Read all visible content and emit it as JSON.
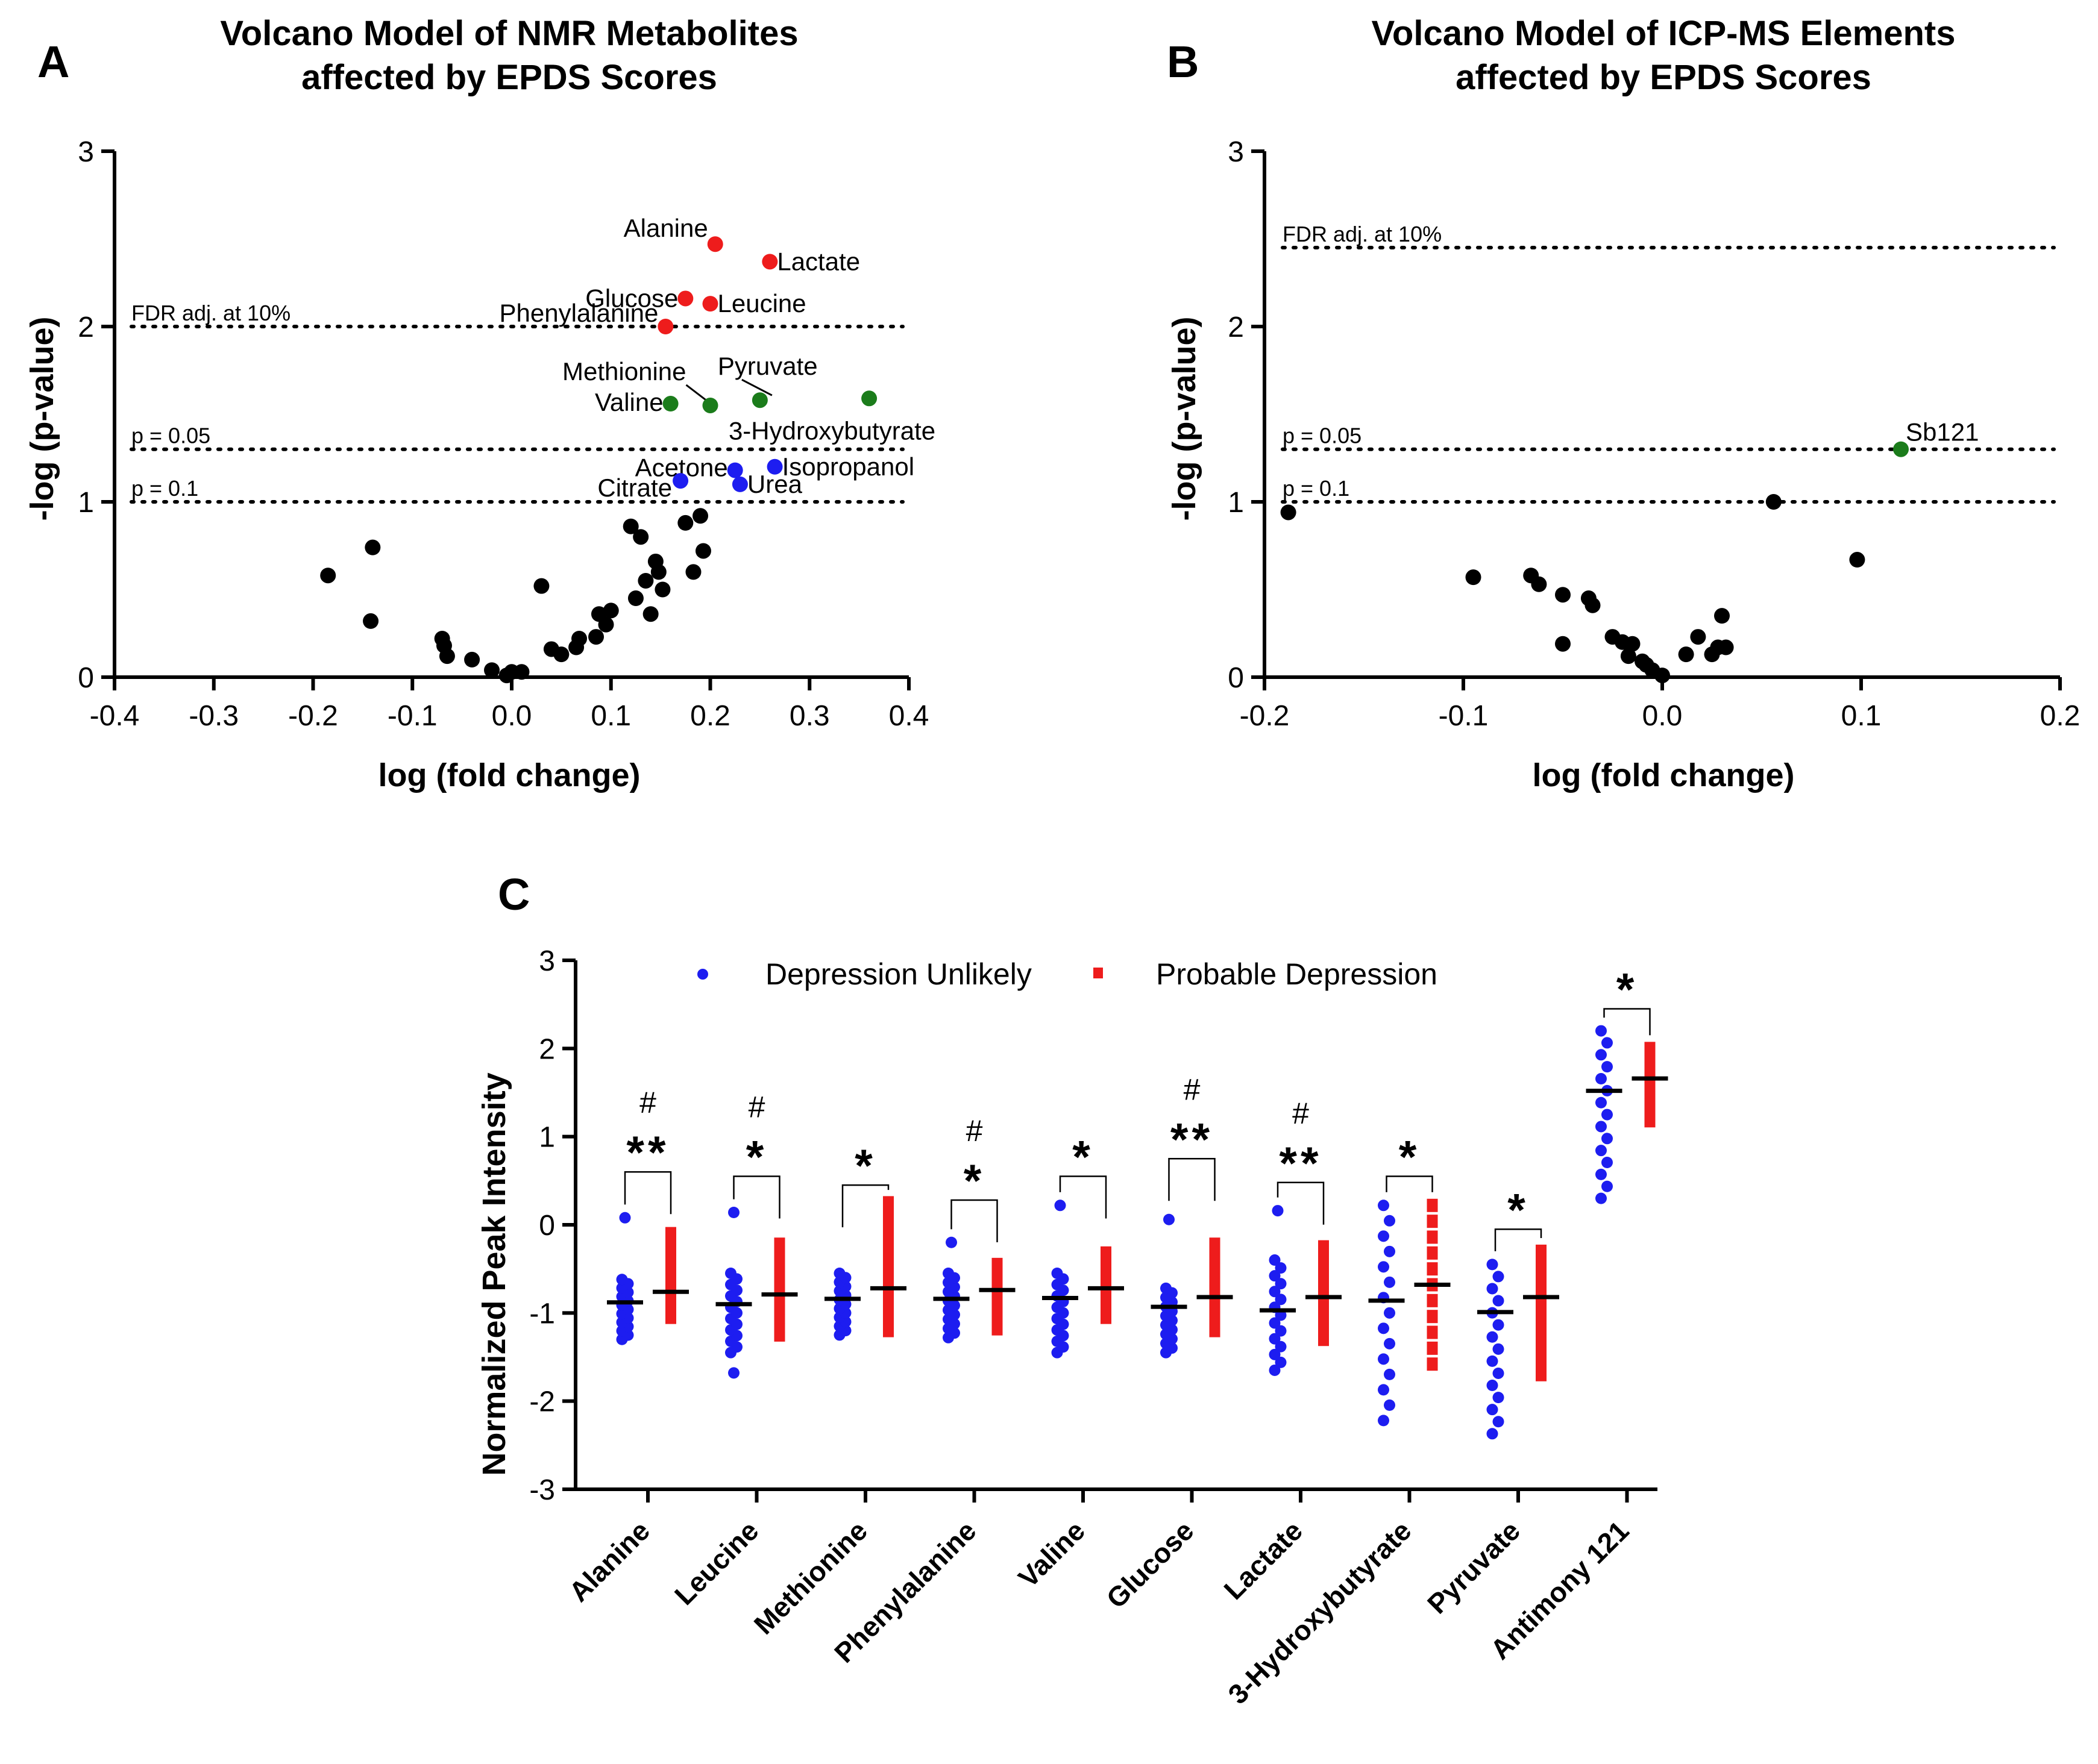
{
  "colors": {
    "red": "#ee1c1c",
    "green": "#1b7c1b",
    "blue": "#1d1df0",
    "black": "#000000"
  },
  "chart_data": [
    {
      "panel": "A",
      "type": "scatter",
      "title_lines": [
        "Volcano Model of NMR Metabolites",
        "affected by EPDS Scores"
      ],
      "xlabel": "log (fold change)",
      "ylabel": "-log (p-value)",
      "xlim": [
        -0.4,
        0.4
      ],
      "ylim": [
        0,
        3
      ],
      "xticks": [
        -0.4,
        -0.3,
        -0.2,
        -0.1,
        0.0,
        0.1,
        0.2,
        0.3,
        0.4
      ],
      "xtick_labels": [
        "-0.4",
        "-0.3",
        "-0.2",
        "-0.1",
        "0.0",
        "0.1",
        "0.2",
        "0.3",
        "0.4"
      ],
      "yticks": [
        0,
        1,
        2,
        3
      ],
      "ytick_labels": [
        "0",
        "1",
        "2",
        "3"
      ],
      "thresholds": [
        {
          "y": 2.0,
          "label": "FDR adj. at 10%"
        },
        {
          "y": 1.3,
          "label": "p = 0.05"
        },
        {
          "y": 1.0,
          "label": "p = 0.1"
        }
      ],
      "labeled_points": [
        {
          "label": "Alanine",
          "x": 0.205,
          "y": 2.47,
          "color": "red"
        },
        {
          "label": "Lactate",
          "x": 0.26,
          "y": 2.37,
          "color": "red"
        },
        {
          "label": "Glucose",
          "x": 0.175,
          "y": 2.16,
          "color": "red"
        },
        {
          "label": "Leucine",
          "x": 0.2,
          "y": 2.13,
          "color": "red"
        },
        {
          "label": "Phenylalanine",
          "x": 0.155,
          "y": 2.0,
          "color": "red"
        },
        {
          "label": "Methionine",
          "x": 0.2,
          "y": 1.55,
          "color": "green"
        },
        {
          "label": "Pyruvate",
          "x": 0.25,
          "y": 1.58,
          "color": "green"
        },
        {
          "label": "Valine",
          "x": 0.16,
          "y": 1.56,
          "color": "green"
        },
        {
          "label": "3-Hydroxybutyrate",
          "x": 0.36,
          "y": 1.59,
          "color": "green"
        },
        {
          "label": "Acetone",
          "x": 0.225,
          "y": 1.18,
          "color": "blue"
        },
        {
          "label": "Isopropanol",
          "x": 0.265,
          "y": 1.2,
          "color": "blue"
        },
        {
          "label": "Urea",
          "x": 0.23,
          "y": 1.1,
          "color": "blue"
        },
        {
          "label": "Citrate",
          "x": 0.17,
          "y": 1.12,
          "color": "blue"
        }
      ],
      "other_points": [
        [
          -0.185,
          0.58
        ],
        [
          -0.14,
          0.74
        ],
        [
          -0.142,
          0.32
        ],
        [
          -0.07,
          0.22
        ],
        [
          -0.068,
          0.18
        ],
        [
          -0.065,
          0.12
        ],
        [
          -0.04,
          0.1
        ],
        [
          -0.02,
          0.04
        ],
        [
          -0.005,
          0.01
        ],
        [
          0.0,
          0.03
        ],
        [
          0.01,
          0.03
        ],
        [
          0.03,
          0.52
        ],
        [
          0.04,
          0.16
        ],
        [
          0.05,
          0.13
        ],
        [
          0.065,
          0.17
        ],
        [
          0.068,
          0.22
        ],
        [
          0.085,
          0.23
        ],
        [
          0.088,
          0.36
        ],
        [
          0.095,
          0.3
        ],
        [
          0.1,
          0.38
        ],
        [
          0.12,
          0.86
        ],
        [
          0.13,
          0.8
        ],
        [
          0.125,
          0.45
        ],
        [
          0.135,
          0.55
        ],
        [
          0.14,
          0.36
        ],
        [
          0.145,
          0.66
        ],
        [
          0.148,
          0.6
        ],
        [
          0.152,
          0.5
        ],
        [
          0.175,
          0.88
        ],
        [
          0.183,
          0.6
        ],
        [
          0.19,
          0.92
        ],
        [
          0.193,
          0.72
        ]
      ]
    },
    {
      "panel": "B",
      "type": "scatter",
      "title_lines": [
        "Volcano Model of ICP-MS Elements",
        "affected by EPDS Scores"
      ],
      "xlabel": "log (fold change)",
      "ylabel": "-log (p-value)",
      "xlim": [
        -0.2,
        0.2
      ],
      "ylim": [
        0,
        3
      ],
      "xticks": [
        -0.2,
        -0.1,
        0.0,
        0.1,
        0.2
      ],
      "xtick_labels": [
        "-0.2",
        "-0.1",
        "0.0",
        "0.1",
        "0.2"
      ],
      "yticks": [
        0,
        1,
        2,
        3
      ],
      "ytick_labels": [
        "0",
        "1",
        "2",
        "3"
      ],
      "thresholds": [
        {
          "y": 2.45,
          "label": "FDR adj. at 10%"
        },
        {
          "y": 1.3,
          "label": "p = 0.05"
        },
        {
          "y": 1.0,
          "label": "p = 0.1"
        }
      ],
      "labeled_points": [
        {
          "label": "Sb121",
          "x": 0.12,
          "y": 1.3,
          "color": "green"
        }
      ],
      "other_points": [
        [
          -0.188,
          0.94
        ],
        [
          -0.095,
          0.57
        ],
        [
          -0.066,
          0.58
        ],
        [
          -0.062,
          0.53
        ],
        [
          -0.05,
          0.47
        ],
        [
          -0.05,
          0.19
        ],
        [
          -0.037,
          0.45
        ],
        [
          -0.035,
          0.41
        ],
        [
          -0.025,
          0.23
        ],
        [
          -0.02,
          0.2
        ],
        [
          -0.017,
          0.12
        ],
        [
          -0.015,
          0.19
        ],
        [
          -0.01,
          0.09
        ],
        [
          -0.008,
          0.07
        ],
        [
          -0.005,
          0.04
        ],
        [
          0.0,
          0.01
        ],
        [
          0.012,
          0.13
        ],
        [
          0.018,
          0.23
        ],
        [
          0.025,
          0.13
        ],
        [
          0.028,
          0.17
        ],
        [
          0.03,
          0.35
        ],
        [
          0.032,
          0.17
        ],
        [
          0.056,
          1.0
        ],
        [
          0.098,
          0.67
        ]
      ]
    },
    {
      "panel": "C",
      "type": "scatter",
      "ylabel": "Normalized Peak Intensity",
      "ylim": [
        -3,
        3
      ],
      "yticks": [
        -3,
        -2,
        -1,
        0,
        1,
        2,
        3
      ],
      "ytick_labels": [
        "-3",
        "-2",
        "-1",
        "0",
        "1",
        "2",
        "3"
      ],
      "legend": [
        {
          "label": "Depression Unlikely",
          "color": "blue",
          "marker": "circle"
        },
        {
          "label": "Probable Depression",
          "color": "red",
          "marker": "square"
        }
      ],
      "categories": [
        "Alanine",
        "Leucine",
        "Methionine",
        "Phenylalanine",
        "Valine",
        "Glucose",
        "Lactate",
        "3-Hydroxybutyrate",
        "Pyruvate",
        "Antimony 121"
      ],
      "groups": [
        {
          "cat": "Alanine",
          "unlikely": {
            "mean": -0.88,
            "min": -1.3,
            "max": -0.62,
            "outliers": [
              0.08
            ]
          },
          "probable": {
            "mean": -0.76,
            "min": -1.05,
            "max": -0.1
          },
          "stars": "**",
          "hash": true,
          "bracket_top": 0.6
        },
        {
          "cat": "Leucine",
          "unlikely": {
            "mean": -0.9,
            "min": -1.45,
            "max": -0.55,
            "outliers": [
              0.14,
              -1.68
            ]
          },
          "probable": {
            "mean": -0.79,
            "min": -1.25,
            "max": -0.22
          },
          "stars": "*",
          "hash": true,
          "bracket_top": 0.55
        },
        {
          "cat": "Methionine",
          "unlikely": {
            "mean": -0.84,
            "min": -1.25,
            "max": -0.55,
            "outliers": []
          },
          "probable": {
            "mean": -0.72,
            "min": -1.2,
            "max": 0.25
          },
          "stars": "*",
          "hash": false,
          "bracket_top": 0.45
        },
        {
          "cat": "Phenylalanine",
          "unlikely": {
            "mean": -0.84,
            "min": -1.28,
            "max": -0.55,
            "outliers": [
              -0.2
            ]
          },
          "probable": {
            "mean": -0.74,
            "min": -1.18,
            "max": -0.45
          },
          "stars": "*",
          "hash": true,
          "bracket_top": 0.28
        },
        {
          "cat": "Valine",
          "unlikely": {
            "mean": -0.83,
            "min": -1.45,
            "max": -0.55,
            "outliers": [
              0.22
            ]
          },
          "probable": {
            "mean": -0.72,
            "min": -1.05,
            "max": -0.32
          },
          "stars": "*",
          "hash": false,
          "bracket_top": 0.55
        },
        {
          "cat": "Glucose",
          "unlikely": {
            "mean": -0.93,
            "min": -1.45,
            "max": -0.72,
            "outliers": [
              0.06
            ]
          },
          "probable": {
            "mean": -0.82,
            "min": -1.2,
            "max": -0.22
          },
          "stars": "**",
          "hash": true,
          "bracket_top": 0.75
        },
        {
          "cat": "Lactate",
          "unlikely": {
            "mean": -0.97,
            "min": -1.65,
            "max": -0.4,
            "outliers": [
              0.16
            ]
          },
          "probable": {
            "mean": -0.82,
            "min": -1.3,
            "max": -0.25
          },
          "stars": "**",
          "hash": true,
          "bracket_top": 0.48
        },
        {
          "cat": "3-Hydroxybutyrate",
          "unlikely": {
            "mean": -0.86,
            "min": -2.22,
            "max": 0.22,
            "outliers": []
          },
          "probable": {
            "mean": -0.68,
            "min": -1.58,
            "max": 0.22
          },
          "stars": "*",
          "hash": false,
          "bracket_top": 0.55
        },
        {
          "cat": "Pyruvate",
          "unlikely": {
            "mean": -0.99,
            "min": -2.37,
            "max": -0.45,
            "outliers": []
          },
          "probable": {
            "mean": -0.82,
            "min": -1.7,
            "max": -0.3
          },
          "stars": "*",
          "hash": false,
          "bracket_top": -0.05
        },
        {
          "cat": "Antimony 121",
          "unlikely": {
            "mean": 1.52,
            "min": 0.3,
            "max": 2.2,
            "outliers": []
          },
          "probable": {
            "mean": 1.66,
            "min": 1.18,
            "max": 2.0
          },
          "stars": "*",
          "hash": false,
          "bracket_top": 2.45
        }
      ]
    }
  ]
}
